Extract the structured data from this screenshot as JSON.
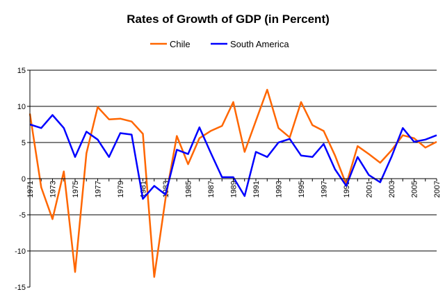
{
  "chart_data": {
    "type": "line",
    "title": "Rates of Growth of GDP (in Percent)",
    "xlabel": "",
    "ylabel": "",
    "ylim": [
      -15,
      15
    ],
    "yticks": [
      -15,
      -10,
      -5,
      0,
      5,
      10,
      15
    ],
    "grid": true,
    "legend": "top",
    "x": [
      1971,
      1972,
      1973,
      1974,
      1975,
      1976,
      1977,
      1978,
      1979,
      1980,
      1981,
      1982,
      1983,
      1984,
      1985,
      1986,
      1987,
      1988,
      1989,
      1990,
      1991,
      1992,
      1993,
      1994,
      1995,
      1996,
      1997,
      1998,
      1999,
      2000,
      2001,
      2002,
      2003,
      2004,
      2005,
      2006,
      2007
    ],
    "x_tick_labels": [
      "1971",
      "1973",
      "1975",
      "1977",
      "1979",
      "1981",
      "1983",
      "1985",
      "1987",
      "1989",
      "1991",
      "1993",
      "1995",
      "1997",
      "1999",
      "2001",
      "2003",
      "2005",
      "2007"
    ],
    "series": [
      {
        "name": "Chile",
        "color": "#FF6600",
        "values": [
          9.0,
          -1.2,
          -5.6,
          1.0,
          -12.9,
          3.5,
          9.9,
          8.2,
          8.3,
          7.9,
          6.2,
          -13.6,
          -2.8,
          5.9,
          2.0,
          5.6,
          6.6,
          7.3,
          10.6,
          3.7,
          8.0,
          12.3,
          7.0,
          5.7,
          10.6,
          7.4,
          6.6,
          3.2,
          -0.8,
          4.5,
          3.4,
          2.2,
          3.9,
          6.0,
          5.6,
          4.3,
          5.1
        ]
      },
      {
        "name": "South America",
        "color": "#0000FF",
        "values": [
          7.5,
          7.0,
          8.8,
          7.0,
          3.0,
          6.5,
          5.4,
          3.0,
          6.3,
          6.1,
          -2.8,
          -1.0,
          -2.2,
          4.0,
          3.4,
          7.1,
          3.6,
          0.2,
          0.2,
          -2.4,
          3.7,
          3.0,
          5.0,
          5.5,
          3.2,
          3.0,
          4.8,
          1.3,
          -1.0,
          3.0,
          0.5,
          -0.5,
          3.0,
          7.0,
          5.1,
          5.4,
          6.0
        ]
      }
    ]
  }
}
